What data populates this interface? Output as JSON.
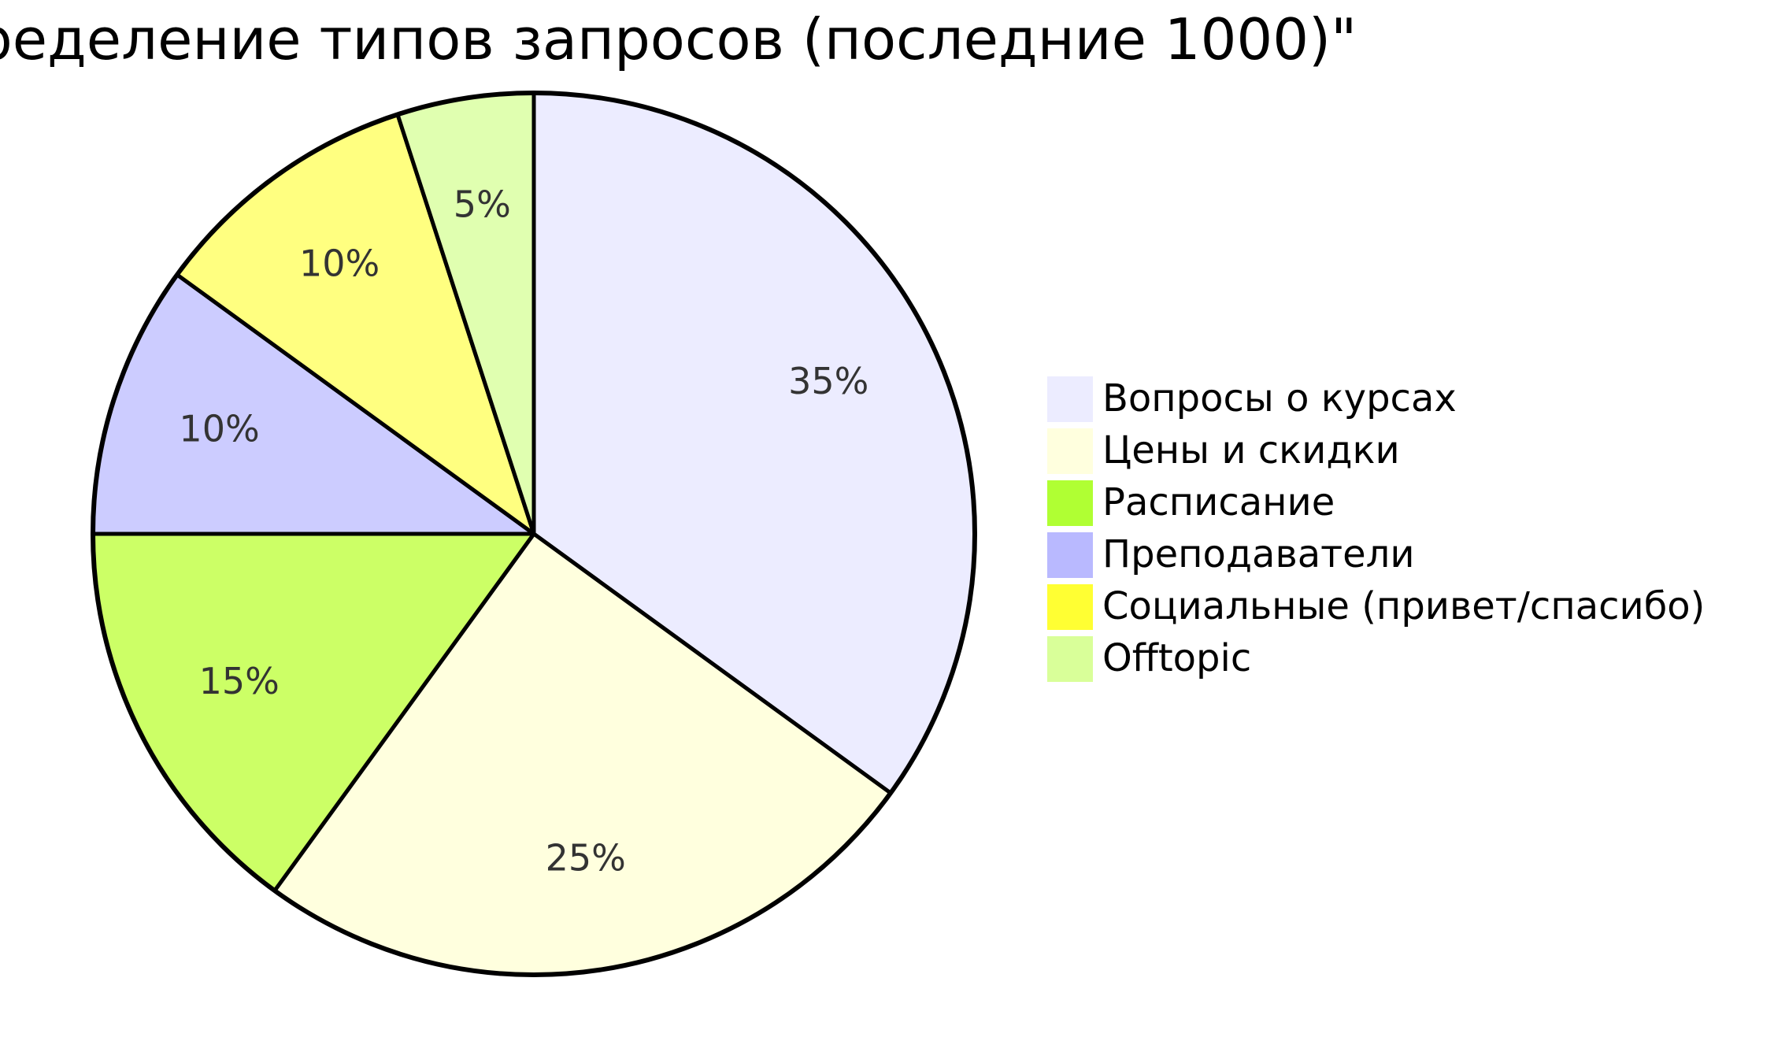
{
  "chart_data": {
    "type": "pie",
    "title": "ределение типов запросов (последние 1000)\"",
    "legend_position": "right",
    "slices": [
      {
        "label": "Вопросы о курсах",
        "value": 35,
        "display": "35%",
        "color": "#ececff"
      },
      {
        "label": "Цены и скидки",
        "value": 25,
        "display": "25%",
        "color": "#ffffde"
      },
      {
        "label": "Расписание",
        "value": 15,
        "display": "15%",
        "color": "#ccff66"
      },
      {
        "label": "Преподаватели",
        "value": 10,
        "display": "10%",
        "color": "#ccccff"
      },
      {
        "label": "Социальные (привет/спасибо)",
        "value": 10,
        "display": "10%",
        "color": "#ffff80"
      },
      {
        "label": "Offtopic",
        "value": 5,
        "display": "5%",
        "color": "#e0ffb0"
      }
    ],
    "legend_swatch_colors": [
      "#ececff",
      "#ffffde",
      "#b0ff33",
      "#b9b9ff",
      "#ffff33",
      "#d9ff99"
    ]
  }
}
